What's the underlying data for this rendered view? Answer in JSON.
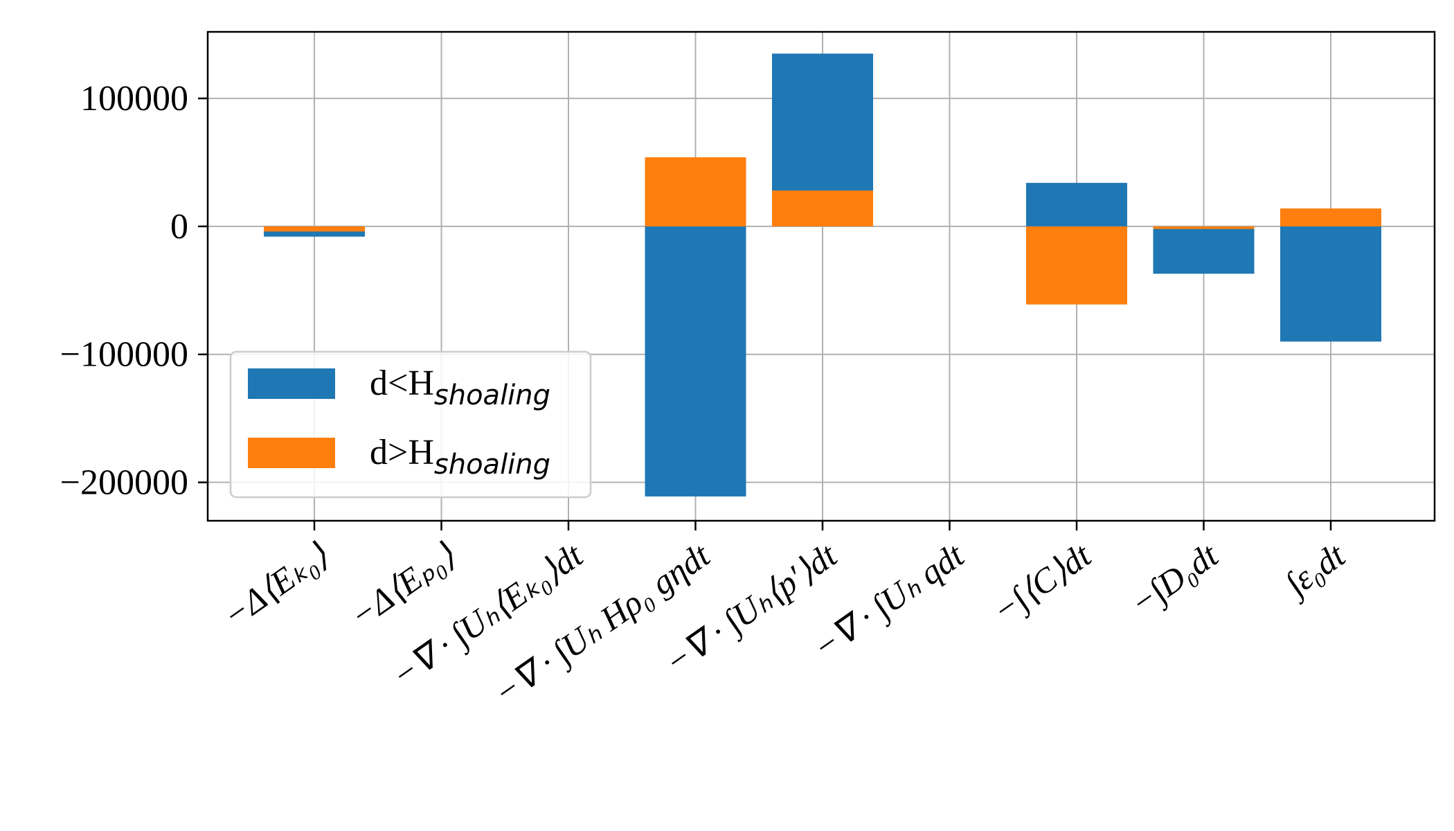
{
  "chart_data": {
    "type": "bar",
    "stacking": "overlay",
    "categories": [
      "−Δ⟨E_{K0}⟩",
      "−Δ⟨E_{p0}⟩",
      "−∇ · ∫U_H⟨E_{K0}⟩dt",
      "−∇ · ∫U_H Hρ_0 gηdt",
      "−∇ · ∫U_H⟨p′⟩dt",
      "−∇ · ∫U_H qdt",
      "−∫⟨C⟩dt",
      "−∫D_0dt",
      "∫ε_0dt"
    ],
    "series": [
      {
        "name": "d<H",
        "name_sub": "shoaling",
        "color": "#1f77b4",
        "values": [
          -8000,
          0,
          0,
          -211000,
          135000,
          0,
          34000,
          -37000,
          -90000
        ]
      },
      {
        "name": "d>H",
        "name_sub": "shoaling",
        "color": "#ff7f0e",
        "values": [
          -4000,
          0,
          0,
          54000,
          28000,
          0,
          -61000,
          -2000,
          14000
        ]
      }
    ],
    "xlabel": "",
    "ylabel": "",
    "ylim": [
      -230000,
      152000
    ],
    "yticks": [
      100000,
      0,
      -100000,
      -200000
    ],
    "ytick_labels": [
      "100000",
      "0",
      "−100000",
      "−200000"
    ],
    "grid": true,
    "legend": "lower-left"
  }
}
